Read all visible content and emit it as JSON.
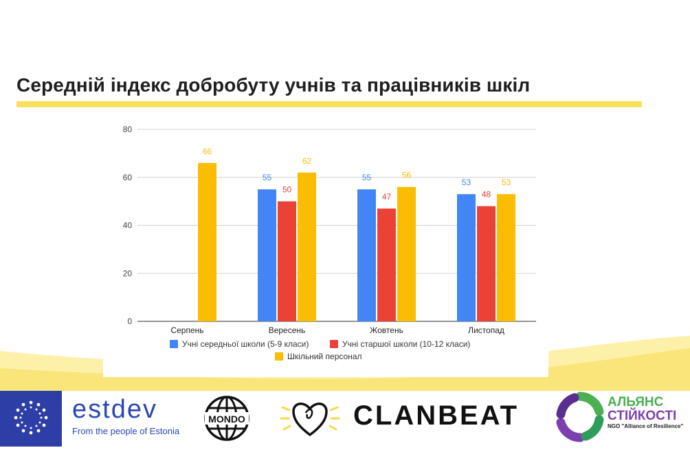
{
  "title": "Середній індекс добробуту учнів та працівників шкіл",
  "colors": {
    "accent_yellow": "#f7e15c",
    "series_blue": "#4285f4",
    "series_red": "#ea4335",
    "series_yellow": "#fbbc04"
  },
  "chart_data": {
    "type": "bar",
    "title": "",
    "xlabel": "",
    "ylabel": "",
    "ylim": [
      0,
      80
    ],
    "yticks": [
      0,
      20,
      40,
      60,
      80
    ],
    "grid": true,
    "legend_position": "bottom",
    "categories": [
      "Серпень",
      "Вересень",
      "Жовтень",
      "Листопад"
    ],
    "series": [
      {
        "name": "Учні середньої школи (5-9 класи)",
        "color": "#4285f4",
        "values": [
          null,
          55,
          55,
          53
        ]
      },
      {
        "name": "Учні старшої школи (10-12 класи)",
        "color": "#ea4335",
        "values": [
          null,
          50,
          47,
          48
        ]
      },
      {
        "name": "Шкільний персонал",
        "color": "#fbbc04",
        "values": [
          66,
          62,
          56,
          53
        ]
      }
    ]
  },
  "logos": {
    "eu_flag_icon": "eu-flag-icon",
    "estdev_name": "estdev",
    "estdev_sub": "From the people of Estonia",
    "mondo_name": "MONDO",
    "clanbeat_name": "CLANBEAT",
    "alliance_name_line1": "АЛЬЯНС",
    "alliance_name_line2": "СТІЙКОСТІ",
    "alliance_sub": "NGO \"Alliance of Resilience\""
  }
}
